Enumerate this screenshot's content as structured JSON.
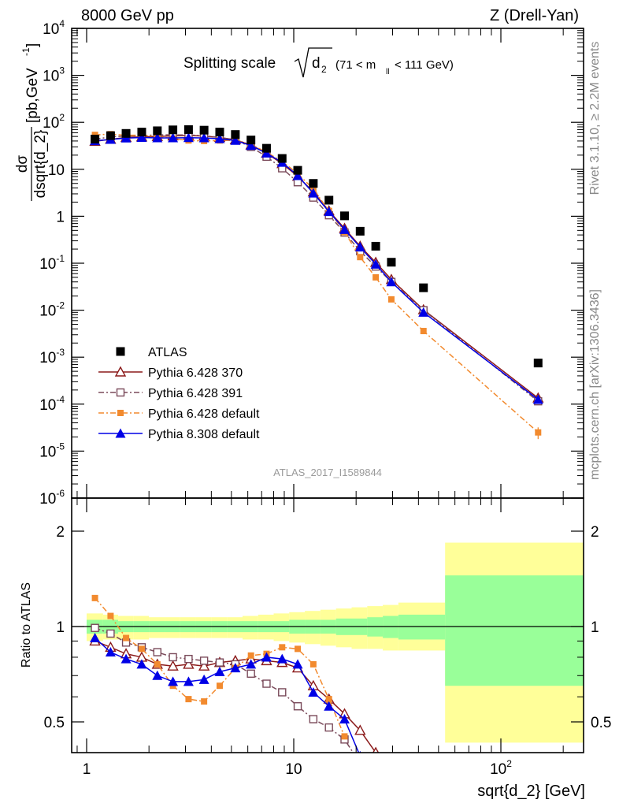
{
  "header": {
    "left": "8000 GeV pp",
    "right": "Z (Drell-Yan)"
  },
  "side_labels": {
    "rivet": "Rivet 3.1.10, ≥ 2.2M events",
    "mcplots": "mcplots.cern.ch [arXiv:1306.3436]"
  },
  "chart_data": [
    {
      "type": "scatter",
      "panel": "main",
      "title_parts": {
        "text": "Splitting scale",
        "sqrt_symbol": "d",
        "sqrt_sub": "2",
        "cut_pre": "(71 < m",
        "cut_sub": "ll",
        "cut_post": " < 111 GeV)"
      },
      "ylabel": "dσ/dsqrt{d_2} [pb,GeV⁻¹]",
      "ylabel_parts": {
        "num": "dσ",
        "den": "dsqrt{d_2}",
        "units": "[pb,GeV",
        "units_sup": "-1",
        "units_close": "]"
      },
      "watermark": "ATLAS_2017_I1589844",
      "xlabel": "",
      "x_scale": "log",
      "y_scale": "log",
      "xlim": [
        0.8,
        300
      ],
      "ylim": [
        1e-06,
        10000.0
      ],
      "y_tick_labels": [
        {
          "value": 10000.0,
          "base": "10",
          "exp": "4"
        },
        {
          "value": 1000.0,
          "base": "10",
          "exp": "3"
        },
        {
          "value": 100.0,
          "base": "10",
          "exp": "2"
        },
        {
          "value": 10,
          "base": "10",
          "exp": ""
        },
        {
          "value": 1,
          "base": "1",
          "exp": ""
        },
        {
          "value": 0.1,
          "base": "10",
          "exp": "-1"
        },
        {
          "value": 0.01,
          "base": "10",
          "exp": "-2"
        },
        {
          "value": 0.001,
          "base": "10",
          "exp": "-3"
        },
        {
          "value": 0.0001,
          "base": "10",
          "exp": "-4"
        },
        {
          "value": 1e-05,
          "base": "10",
          "exp": "-5"
        },
        {
          "value": 1e-06,
          "base": "10",
          "exp": "-6"
        }
      ],
      "legend_position": "bottom-left",
      "series": [
        {
          "name": "ATLAS",
          "color": "#000000",
          "marker": "square-filled",
          "line": "none",
          "x": [
            1.097,
            1.305,
            1.55,
            1.845,
            2.195,
            2.61,
            3.105,
            3.69,
            4.39,
            5.225,
            6.215,
            7.39,
            8.79,
            10.45,
            12.43,
            14.79,
            17.59,
            20.92,
            24.88,
            29.6,
            42.3,
            151.3
          ],
          "y": [
            44,
            52,
            58,
            62,
            66,
            69,
            70,
            68,
            62,
            55,
            42,
            28,
            17,
            9.5,
            5.0,
            2.2,
            1.02,
            0.48,
            0.23,
            0.105,
            0.03,
            0.00075
          ]
        },
        {
          "name": "Pythia 6.428 370",
          "color": "#8b1a1a",
          "marker": "triangle-open",
          "line": "solid",
          "x": [
            1.097,
            1.305,
            1.55,
            1.845,
            2.195,
            2.61,
            3.105,
            3.69,
            4.39,
            5.225,
            6.215,
            7.39,
            8.79,
            10.45,
            12.43,
            14.79,
            17.59,
            20.92,
            24.88,
            29.6,
            42.3,
            151.3
          ],
          "y": [
            39.5,
            43.5,
            47.5,
            49.0,
            50.0,
            51.5,
            52.5,
            51.0,
            47.5,
            42.5,
            33.0,
            22.0,
            13.2,
            7.1,
            3.3,
            1.3,
            0.55,
            0.23,
            0.104,
            0.045,
            0.0102,
            0.000135
          ]
        },
        {
          "name": "Pythia 6.428 391",
          "color": "#7a4a5a",
          "marker": "square-open",
          "line": "dashdot",
          "x": [
            1.097,
            1.305,
            1.55,
            1.845,
            2.195,
            2.61,
            3.105,
            3.69,
            4.39,
            5.225,
            6.215,
            7.39,
            8.79,
            10.45,
            12.43,
            14.79,
            17.59,
            20.92,
            24.88,
            29.6,
            42.3,
            151.3
          ],
          "y": [
            43.5,
            49.0,
            51.0,
            52.0,
            54.0,
            54.0,
            53.5,
            52.0,
            47.5,
            42.0,
            30.0,
            18.5,
            10.5,
            5.3,
            2.5,
            1.05,
            0.45,
            0.18,
            0.085,
            0.04,
            0.01,
            0.000115
          ]
        },
        {
          "name": "Pythia 6.428 default",
          "color": "#f28a2e",
          "marker": "square-filled-small",
          "line": "dashdot",
          "x": [
            1.097,
            1.305,
            1.55,
            1.845,
            2.195,
            2.61,
            3.105,
            3.69,
            4.39,
            5.225,
            6.215,
            7.39,
            8.79,
            10.45,
            12.43,
            14.79,
            17.59,
            20.92,
            24.88,
            29.6,
            42.3,
            151.3
          ],
          "y": [
            54,
            56,
            53,
            53,
            50,
            45,
            41,
            40,
            41,
            41,
            34,
            23,
            14.7,
            8.1,
            3.8,
            1.3,
            0.46,
            0.135,
            0.05,
            0.017,
            0.0036,
            2.5e-05
          ],
          "error_last": [
            1.8e-05,
            3.2e-05
          ]
        },
        {
          "name": "Pythia 8.308 default",
          "color": "#0000e6",
          "marker": "triangle-filled",
          "line": "solid",
          "x": [
            1.097,
            1.305,
            1.55,
            1.845,
            2.195,
            2.61,
            3.105,
            3.69,
            4.39,
            5.225,
            6.215,
            7.39,
            8.79,
            10.45,
            12.43,
            14.79,
            17.59,
            20.92,
            24.88,
            29.6,
            42.3,
            151.3
          ],
          "y": [
            40.5,
            43.0,
            46.0,
            47.5,
            46.5,
            46.5,
            47.0,
            46.5,
            44.5,
            41.0,
            32.0,
            22.0,
            14.0,
            7.3,
            3.1,
            1.25,
            0.52,
            0.22,
            0.095,
            0.04,
            0.009,
            0.000125
          ]
        }
      ]
    },
    {
      "type": "scatter",
      "panel": "ratio",
      "ylabel": "Ratio to ATLAS",
      "xlabel": "sqrt{d_2} [GeV]",
      "x_scale": "log",
      "y_scale": "log",
      "xlim": [
        0.8,
        300
      ],
      "ylim": [
        0.33,
        2.4
      ],
      "y_tick_labels": [
        {
          "value": 2,
          "label": "2"
        },
        {
          "value": 1,
          "label": "1"
        },
        {
          "value": 0.5,
          "label": "0.5"
        }
      ],
      "x_tick_labels": [
        {
          "value": 1,
          "base": "1",
          "exp": ""
        },
        {
          "value": 10,
          "base": "10",
          "exp": ""
        },
        {
          "value": 100,
          "base": "10",
          "exp": "2"
        }
      ],
      "reference_line": 1,
      "uncertainty_bands": {
        "bin_edges": [
          1.0,
          1.2,
          1.42,
          1.68,
          2.0,
          2.38,
          2.83,
          3.36,
          4.0,
          4.76,
          5.66,
          6.73,
          8.0,
          9.51,
          11.31,
          13.45,
          16.0,
          19.03,
          22.63,
          26.91,
          32.0,
          53.8,
          256.0
        ],
        "total": {
          "color": "#ffff99",
          "low": [
            0.9,
            0.91,
            0.91,
            0.91,
            0.92,
            0.92,
            0.92,
            0.92,
            0.92,
            0.92,
            0.91,
            0.91,
            0.9,
            0.89,
            0.88,
            0.87,
            0.86,
            0.85,
            0.85,
            0.84,
            0.84,
            0.43
          ],
          "high": [
            1.1,
            1.09,
            1.08,
            1.08,
            1.07,
            1.07,
            1.07,
            1.07,
            1.07,
            1.07,
            1.08,
            1.09,
            1.1,
            1.11,
            1.12,
            1.13,
            1.14,
            1.15,
            1.16,
            1.17,
            1.19,
            1.84
          ]
        },
        "stat": {
          "color": "#99ff99",
          "low": [
            0.95,
            0.95,
            0.96,
            0.96,
            0.96,
            0.96,
            0.96,
            0.96,
            0.96,
            0.96,
            0.96,
            0.96,
            0.96,
            0.95,
            0.95,
            0.95,
            0.94,
            0.94,
            0.93,
            0.92,
            0.91,
            0.65
          ],
          "high": [
            1.05,
            1.05,
            1.04,
            1.04,
            1.04,
            1.04,
            1.04,
            1.04,
            1.04,
            1.04,
            1.04,
            1.04,
            1.04,
            1.05,
            1.05,
            1.05,
            1.06,
            1.06,
            1.07,
            1.08,
            1.09,
            1.45
          ]
        }
      },
      "series": [
        {
          "name": "Pythia 6.428 370",
          "color": "#8b1a1a",
          "marker": "triangle-open",
          "line": "solid",
          "x": [
            1.097,
            1.305,
            1.55,
            1.845,
            2.195,
            2.61,
            3.105,
            3.69,
            4.39,
            5.225,
            6.215,
            7.39,
            8.79,
            10.45,
            12.43,
            14.79,
            17.59,
            20.92,
            24.88,
            29.6
          ],
          "y": [
            0.9,
            0.86,
            0.82,
            0.8,
            0.76,
            0.75,
            0.76,
            0.75,
            0.77,
            0.78,
            0.79,
            0.78,
            0.77,
            0.74,
            0.65,
            0.59,
            0.53,
            0.47,
            0.4,
            0.36
          ]
        },
        {
          "name": "Pythia 6.428 391",
          "color": "#7a4a5a",
          "marker": "square-open",
          "line": "dashdot",
          "x": [
            1.097,
            1.305,
            1.55,
            1.845,
            2.195,
            2.61,
            3.105,
            3.69,
            4.39,
            5.225,
            6.215,
            7.39,
            8.79,
            10.45,
            12.43,
            14.79,
            17.59,
            20.92,
            24.88
          ],
          "y": [
            0.99,
            0.95,
            0.89,
            0.86,
            0.83,
            0.8,
            0.79,
            0.78,
            0.77,
            0.76,
            0.71,
            0.66,
            0.62,
            0.56,
            0.51,
            0.48,
            0.44,
            0.37,
            0.35
          ]
        },
        {
          "name": "Pythia 6.428 default",
          "color": "#f28a2e",
          "marker": "square-filled-small",
          "line": "dashdot",
          "x": [
            1.097,
            1.305,
            1.55,
            1.845,
            2.195,
            2.61,
            3.105,
            3.69,
            4.39,
            5.225,
            6.215,
            7.39,
            8.79,
            10.45,
            12.43,
            14.79,
            17.59
          ],
          "y": [
            1.23,
            1.08,
            0.92,
            0.85,
            0.76,
            0.65,
            0.59,
            0.58,
            0.65,
            0.74,
            0.81,
            0.82,
            0.86,
            0.85,
            0.76,
            0.59,
            0.45
          ]
        },
        {
          "name": "Pythia 8.308 default",
          "color": "#0000e6",
          "marker": "triangle-filled",
          "line": "solid",
          "x": [
            1.097,
            1.305,
            1.55,
            1.845,
            2.195,
            2.61,
            3.105,
            3.69,
            4.39,
            5.225,
            6.215,
            7.39,
            8.79,
            10.45,
            12.43,
            14.79,
            17.59,
            20.92
          ],
          "y": [
            0.92,
            0.83,
            0.79,
            0.76,
            0.7,
            0.67,
            0.67,
            0.68,
            0.72,
            0.74,
            0.76,
            0.8,
            0.79,
            0.76,
            0.62,
            0.56,
            0.51,
            0.39
          ]
        }
      ]
    }
  ]
}
